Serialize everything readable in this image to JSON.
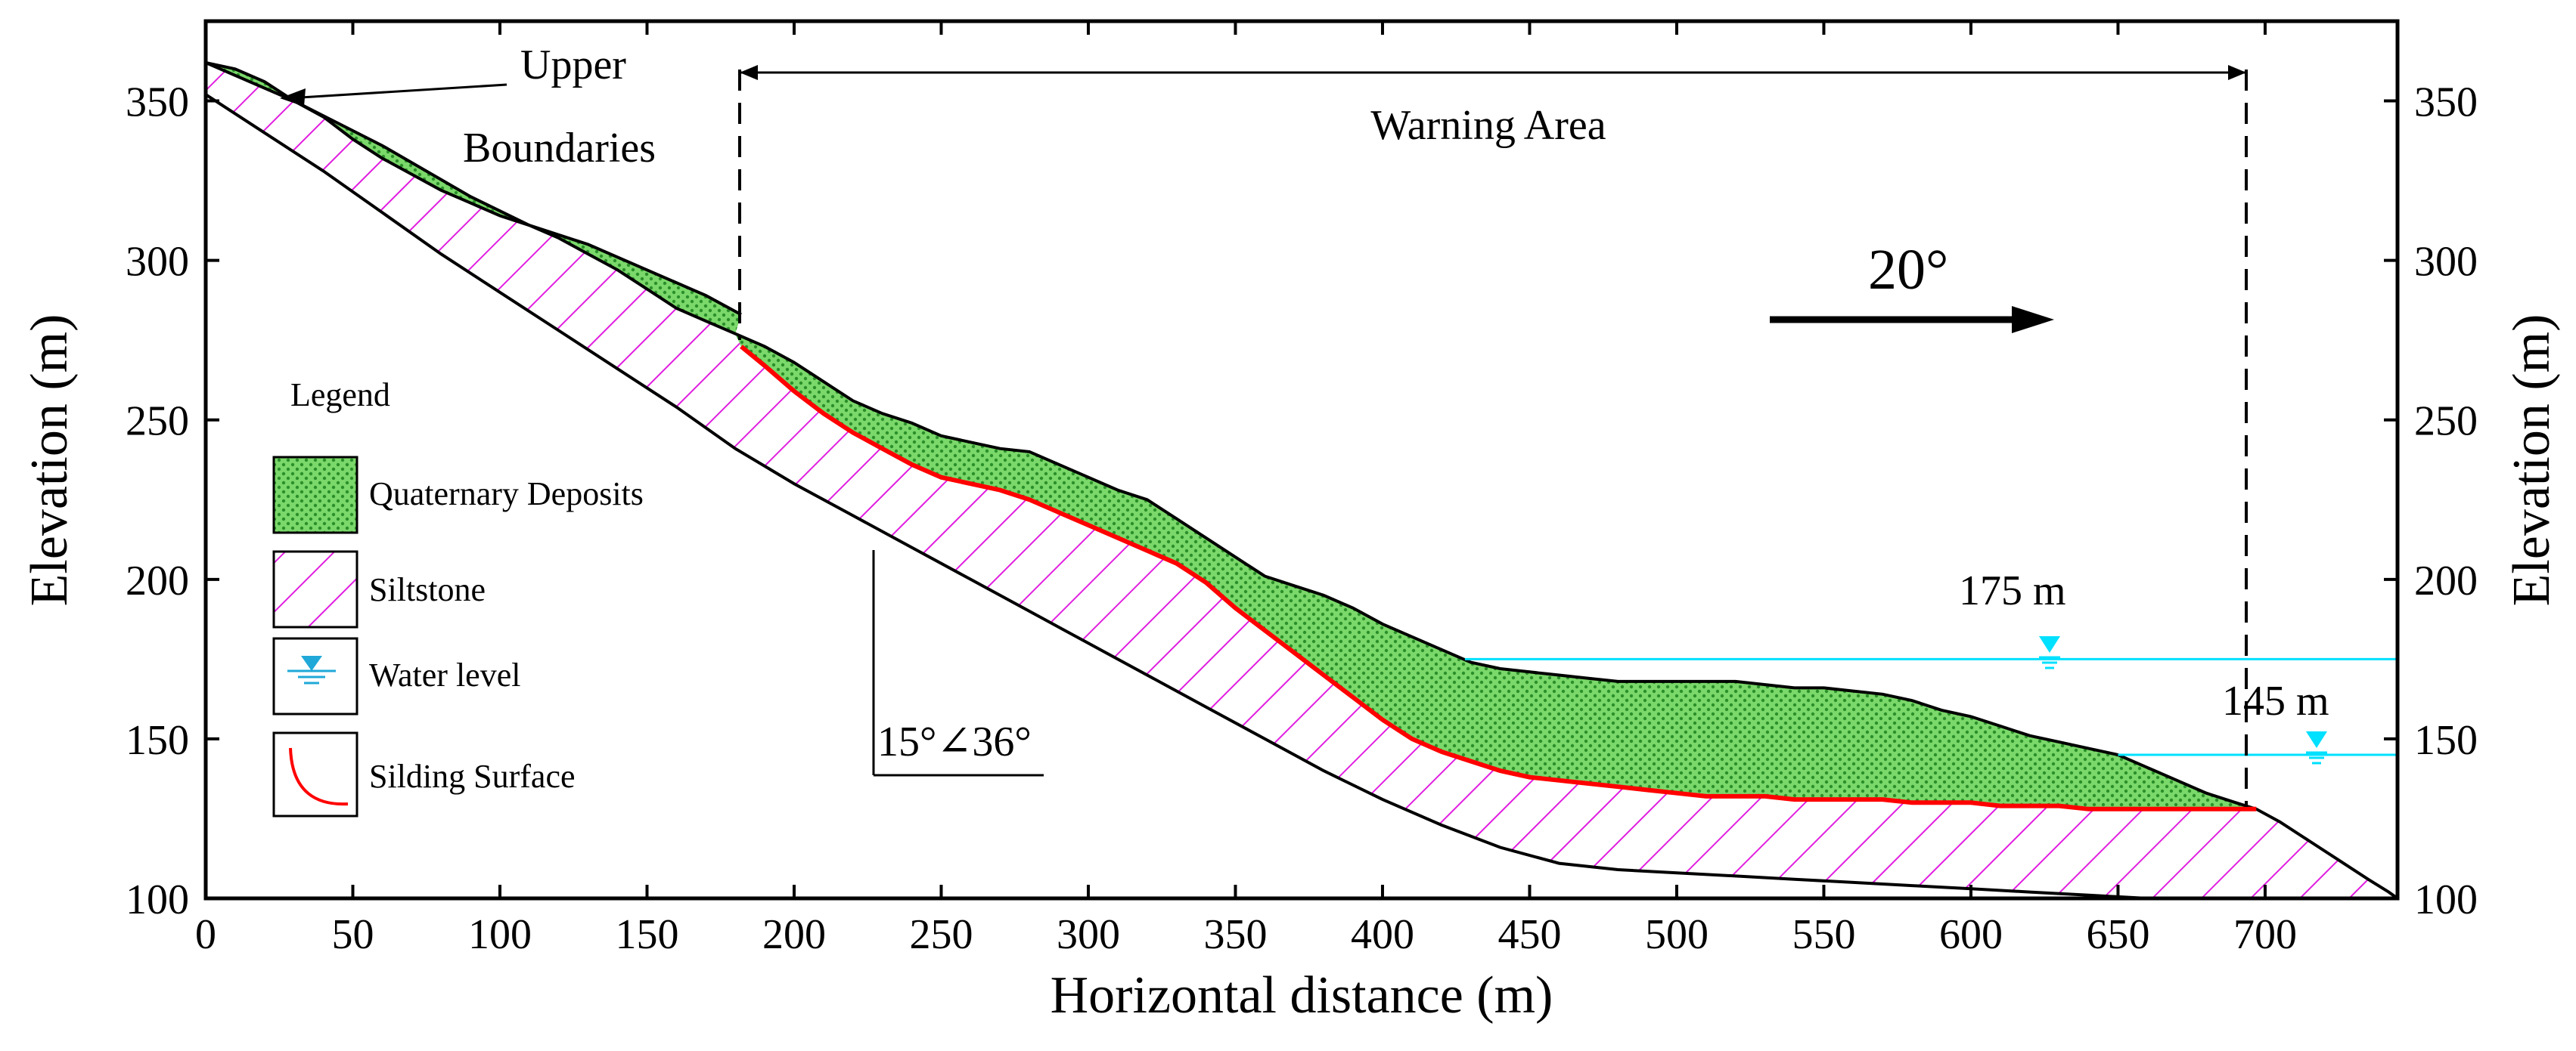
{
  "figure": {
    "x_axis_title": "Horizontal distance (m)",
    "y_axis_title_left": "Elevation (m)",
    "y_axis_title_right": "Elevation (m)",
    "x_ticks": [
      "0",
      "50",
      "100",
      "150",
      "200",
      "250",
      "300",
      "350",
      "400",
      "450",
      "500",
      "550",
      "600",
      "650",
      "700"
    ],
    "y_ticks": [
      "100",
      "150",
      "200",
      "250",
      "300",
      "350"
    ],
    "x_range": [
      0,
      745
    ],
    "y_range": [
      100,
      375
    ]
  },
  "annotations": {
    "upper_boundaries_line1": "Upper",
    "upper_boundaries_line2": "Boundaries",
    "warning_area": "Warning Area",
    "dip_direction": "20°",
    "attitude": "15°∠36°",
    "water_level_175": "175 m",
    "water_level_145": "145 m"
  },
  "legend": {
    "title": "Legend",
    "items": [
      {
        "label": "Quaternary Deposits",
        "symbol": "quaternary-deposits"
      },
      {
        "label": "Siltstone",
        "symbol": "siltstone"
      },
      {
        "label": "Water level",
        "symbol": "water-level"
      },
      {
        "label": "Silding Surface",
        "symbol": "sliding-surface"
      }
    ]
  },
  "profile": {
    "ground_surface": [
      [
        0,
        362
      ],
      [
        10,
        360
      ],
      [
        20,
        356
      ],
      [
        30,
        350
      ],
      [
        40,
        345
      ],
      [
        50,
        338
      ],
      [
        60,
        332
      ],
      [
        70,
        327
      ],
      [
        80,
        322
      ],
      [
        90,
        318
      ],
      [
        100,
        314
      ],
      [
        110,
        311
      ],
      [
        120,
        307
      ],
      [
        130,
        302
      ],
      [
        140,
        297
      ],
      [
        150,
        291
      ],
      [
        160,
        285
      ],
      [
        170,
        281
      ],
      [
        180,
        277
      ],
      [
        190,
        273
      ],
      [
        200,
        268
      ],
      [
        210,
        262
      ],
      [
        220,
        256
      ],
      [
        230,
        252
      ],
      [
        240,
        249
      ],
      [
        250,
        245
      ],
      [
        260,
        243
      ],
      [
        270,
        241
      ],
      [
        280,
        240
      ],
      [
        290,
        236
      ],
      [
        300,
        232
      ],
      [
        310,
        228
      ],
      [
        320,
        225
      ],
      [
        330,
        219
      ],
      [
        340,
        213
      ],
      [
        350,
        207
      ],
      [
        360,
        201
      ],
      [
        370,
        198
      ],
      [
        380,
        195
      ],
      [
        390,
        191
      ],
      [
        400,
        186
      ],
      [
        410,
        182
      ],
      [
        420,
        178
      ],
      [
        430,
        174
      ],
      [
        440,
        172
      ],
      [
        450,
        171
      ],
      [
        460,
        170
      ],
      [
        470,
        169
      ],
      [
        480,
        168
      ],
      [
        490,
        168
      ],
      [
        500,
        168
      ],
      [
        510,
        168
      ],
      [
        520,
        168
      ],
      [
        530,
        167
      ],
      [
        540,
        166
      ],
      [
        550,
        166
      ],
      [
        560,
        165
      ],
      [
        570,
        164
      ],
      [
        580,
        162
      ],
      [
        590,
        159
      ],
      [
        600,
        157
      ],
      [
        610,
        154
      ],
      [
        620,
        151
      ],
      [
        630,
        149
      ],
      [
        640,
        147
      ],
      [
        650,
        145
      ],
      [
        660,
        141
      ],
      [
        670,
        137
      ],
      [
        680,
        133
      ],
      [
        690,
        130
      ],
      [
        697,
        128
      ],
      [
        705,
        124
      ],
      [
        715,
        118
      ],
      [
        725,
        112
      ],
      [
        735,
        106
      ],
      [
        742,
        102
      ],
      [
        745,
        100
      ]
    ],
    "sliding_surface": [
      [
        182,
        273
      ],
      [
        190,
        267
      ],
      [
        200,
        259
      ],
      [
        210,
        252
      ],
      [
        220,
        246
      ],
      [
        230,
        241
      ],
      [
        240,
        236
      ],
      [
        250,
        232
      ],
      [
        260,
        230
      ],
      [
        270,
        228
      ],
      [
        280,
        225
      ],
      [
        290,
        221
      ],
      [
        300,
        217
      ],
      [
        310,
        213
      ],
      [
        320,
        209
      ],
      [
        330,
        205
      ],
      [
        340,
        199
      ],
      [
        350,
        191
      ],
      [
        360,
        184
      ],
      [
        370,
        177
      ],
      [
        380,
        170
      ],
      [
        390,
        163
      ],
      [
        400,
        156
      ],
      [
        410,
        150
      ],
      [
        420,
        146
      ],
      [
        430,
        143
      ],
      [
        440,
        140
      ],
      [
        450,
        138
      ],
      [
        460,
        137
      ],
      [
        470,
        136
      ],
      [
        480,
        135
      ],
      [
        490,
        134
      ],
      [
        500,
        133
      ],
      [
        510,
        132
      ],
      [
        520,
        132
      ],
      [
        530,
        132
      ],
      [
        540,
        131
      ],
      [
        550,
        131
      ],
      [
        560,
        131
      ],
      [
        570,
        131
      ],
      [
        580,
        130
      ],
      [
        590,
        130
      ],
      [
        600,
        130
      ],
      [
        610,
        129
      ],
      [
        620,
        129
      ],
      [
        630,
        129
      ],
      [
        640,
        128
      ],
      [
        650,
        128
      ],
      [
        660,
        128
      ],
      [
        670,
        128
      ],
      [
        680,
        128
      ],
      [
        697,
        128
      ]
    ],
    "bedrock_lower": [
      [
        0,
        352
      ],
      [
        20,
        340
      ],
      [
        40,
        328
      ],
      [
        60,
        315
      ],
      [
        80,
        302
      ],
      [
        100,
        290
      ],
      [
        120,
        278
      ],
      [
        140,
        266
      ],
      [
        160,
        254
      ],
      [
        180,
        241
      ],
      [
        200,
        230
      ],
      [
        220,
        220
      ],
      [
        240,
        210
      ],
      [
        260,
        200
      ],
      [
        280,
        190
      ],
      [
        300,
        180
      ],
      [
        320,
        170
      ],
      [
        340,
        160
      ],
      [
        360,
        150
      ],
      [
        380,
        140
      ],
      [
        400,
        131
      ],
      [
        420,
        123
      ],
      [
        440,
        116
      ],
      [
        460,
        111
      ],
      [
        480,
        109
      ],
      [
        500,
        108
      ],
      [
        520,
        107
      ],
      [
        540,
        106
      ],
      [
        560,
        105
      ],
      [
        580,
        104
      ],
      [
        600,
        103
      ],
      [
        620,
        102
      ],
      [
        640,
        101
      ],
      [
        660,
        100
      ],
      [
        745,
        100
      ]
    ],
    "upper_block_top": [
      [
        0,
        362
      ],
      [
        30,
        350
      ],
      [
        60,
        336
      ],
      [
        90,
        320
      ],
      [
        110,
        311
      ],
      [
        130,
        305
      ],
      [
        150,
        297
      ],
      [
        170,
        289
      ],
      [
        182,
        283
      ]
    ]
  },
  "water_levels": [
    {
      "elevation": 175,
      "x_start": 428,
      "x_end": 745
    },
    {
      "elevation": 145,
      "x_start": 650,
      "x_end": 745
    }
  ],
  "colors": {
    "quaternary_fill": "#7bd86a",
    "quaternary_dot": "#2a8f2a",
    "siltstone_hatch": "#e11fe0",
    "sliding_surface": "#ff0000",
    "water_line": "#00e0ff",
    "water_symbol": "#1fa8d8"
  }
}
